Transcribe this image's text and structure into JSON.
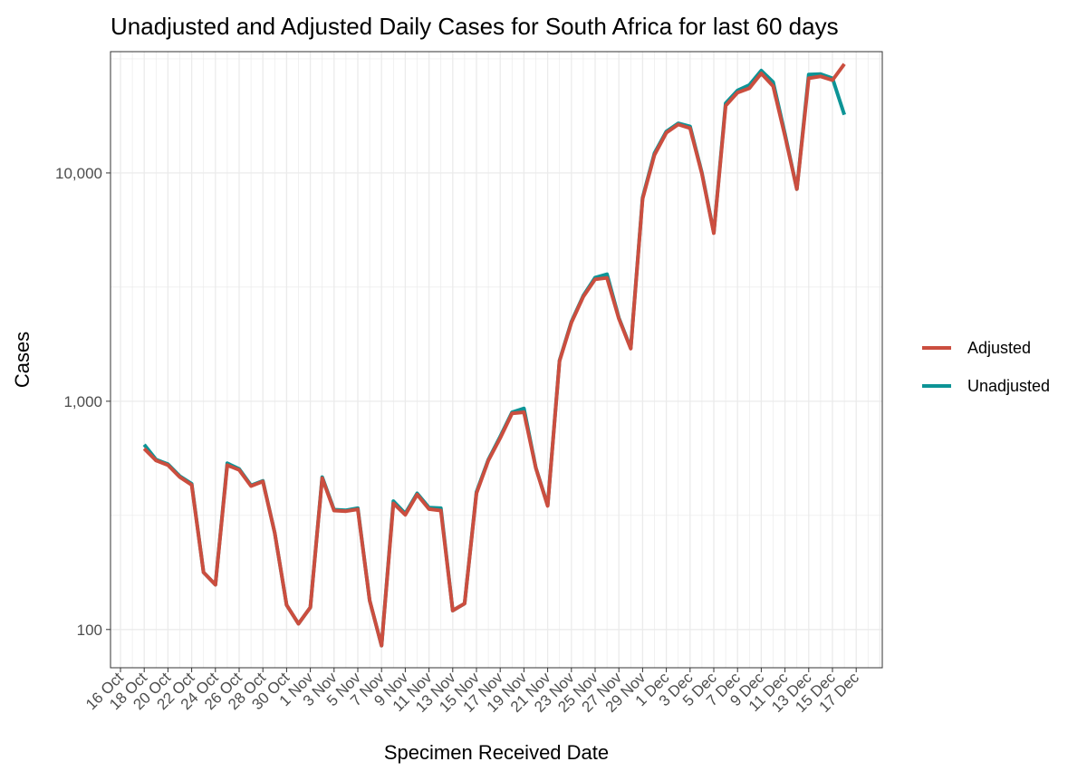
{
  "chart_data": {
    "type": "line",
    "title": "Unadjusted and Adjusted Daily Cases for South Africa for last 60 days",
    "xlabel": "Specimen Received Date",
    "ylabel": "Cases",
    "y_scale": "log10",
    "ylim": [
      68,
      34000
    ],
    "y_ticks": [
      100,
      1000,
      10000
    ],
    "y_tick_labels": [
      "100",
      "1,000",
      "10,000"
    ],
    "x_ticks": [
      "16 Oct",
      "18 Oct",
      "20 Oct",
      "22 Oct",
      "24 Oct",
      "26 Oct",
      "28 Oct",
      "30 Oct",
      "1 Nov",
      "3 Nov",
      "5 Nov",
      "7 Nov",
      "9 Nov",
      "11 Nov",
      "13 Nov",
      "15 Nov",
      "17 Nov",
      "19 Nov",
      "21 Nov",
      "23 Nov",
      "25 Nov",
      "27 Nov",
      "29 Nov",
      "1 Dec",
      "3 Dec",
      "5 Dec",
      "7 Dec",
      "9 Dec",
      "11 Dec",
      "13 Dec",
      "15 Dec",
      "17 Dec"
    ],
    "grid": true,
    "legend_position": "right",
    "start_date": "18 Oct",
    "dates": [
      "18 Oct",
      "19 Oct",
      "20 Oct",
      "21 Oct",
      "22 Oct",
      "23 Oct",
      "24 Oct",
      "25 Oct",
      "26 Oct",
      "27 Oct",
      "28 Oct",
      "29 Oct",
      "30 Oct",
      "31 Oct",
      "1 Nov",
      "2 Nov",
      "3 Nov",
      "4 Nov",
      "5 Nov",
      "6 Nov",
      "7 Nov",
      "8 Nov",
      "9 Nov",
      "10 Nov",
      "11 Nov",
      "12 Nov",
      "13 Nov",
      "14 Nov",
      "15 Nov",
      "16 Nov",
      "17 Nov",
      "18 Nov",
      "19 Nov",
      "20 Nov",
      "21 Nov",
      "22 Nov",
      "23 Nov",
      "24 Nov",
      "25 Nov",
      "26 Nov",
      "27 Nov",
      "28 Nov",
      "29 Nov",
      "30 Nov",
      "1 Dec",
      "2 Dec",
      "3 Dec",
      "4 Dec",
      "5 Dec",
      "6 Dec",
      "7 Dec",
      "8 Dec",
      "9 Dec",
      "10 Dec",
      "11 Dec",
      "12 Dec",
      "13 Dec",
      "14 Dec",
      "15 Dec",
      "16 Dec"
    ],
    "series": [
      {
        "name": "Adjusted",
        "color": "#CB4E3F",
        "values": [
          620,
          550,
          525,
          465,
          430,
          178,
          157,
          525,
          500,
          425,
          445,
          265,
          128,
          106,
          125,
          460,
          332,
          330,
          336,
          134,
          85,
          357,
          318,
          390,
          337,
          332,
          121,
          130,
          395,
          550,
          690,
          885,
          895,
          510,
          348,
          1500,
          2210,
          2870,
          3420,
          3470,
          2300,
          1700,
          7700,
          12000,
          15000,
          16300,
          15700,
          9900,
          5450,
          19700,
          22500,
          23500,
          27300,
          24000,
          14500,
          8500,
          26000,
          26500,
          25500,
          30000
        ]
      },
      {
        "name": "Unadjusted",
        "color": "#0D9496",
        "values": [
          645,
          555,
          530,
          470,
          435,
          178,
          157,
          535,
          505,
          428,
          448,
          265,
          128,
          106,
          125,
          465,
          335,
          333,
          340,
          134,
          85,
          365,
          322,
          395,
          342,
          340,
          121,
          130,
          400,
          555,
          700,
          895,
          930,
          512,
          350,
          1510,
          2230,
          2900,
          3480,
          3600,
          2320,
          1710,
          7800,
          12200,
          15200,
          16500,
          16000,
          10000,
          5480,
          20200,
          23000,
          24300,
          28100,
          25000,
          14800,
          8500,
          27000,
          27100,
          26000,
          18000
        ]
      }
    ]
  }
}
